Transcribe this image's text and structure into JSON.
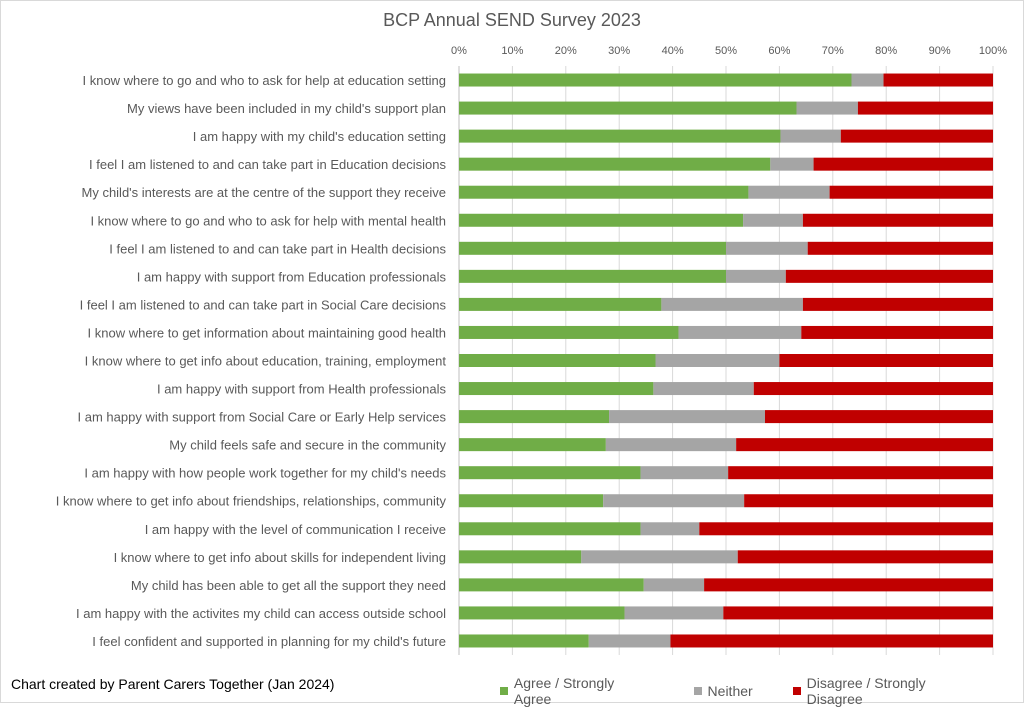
{
  "chart_data": {
    "type": "bar",
    "orientation": "horizontal",
    "stacked": "percent",
    "title": "BCP Annual SEND Survey 2023",
    "credit": "Chart created by Parent Carers Together (Jan 2024)",
    "xlim": [
      0,
      100
    ],
    "x_ticks": [
      "0%",
      "10%",
      "20%",
      "30%",
      "40%",
      "50%",
      "60%",
      "70%",
      "80%",
      "90%",
      "100%"
    ],
    "grid": true,
    "legend_position": "bottom",
    "categories": [
      "I know where to go and who to ask for help at education setting",
      "My views have been included in my child's support plan",
      "I am happy with my child's education setting",
      "I feel I am listened to and can take part in Education decisions",
      "My child's interests are at the centre of the support they receive",
      "I know where to go and who to ask for help with mental health",
      "I feel I am listened to and can take part in Health decisions",
      "I am happy with support from Education professionals",
      "I feel I am listened to and can take part in Social Care decisions",
      "I know where to get information about maintaining good health",
      "I know where to get info about education, training, employment",
      "I am happy with support from Health professionals",
      "I am happy with support from Social Care or Early Help services",
      "My child feels safe and secure in the community",
      "I am happy with how people work together for my child's needs",
      "I know where to get info about friendships, relationships, community",
      "I am happy with the level of communication I receive",
      "I know where to get info about skills for independent living",
      "My child has been able to get all the support they need",
      "I am happy with the activites my child can access outside school",
      "I feel confident and supported in planning for my child's future"
    ],
    "series": [
      {
        "name": "Agree / Strongly Agree",
        "color": "#70ad47",
        "values": [
          73.5,
          63.2,
          60.2,
          58.3,
          54.2,
          53.2,
          50,
          50,
          37.9,
          41.1,
          36.8,
          36.4,
          28.1,
          27.5,
          34,
          27,
          34,
          22.9,
          34.6,
          31,
          24.3
        ]
      },
      {
        "name": "Neither",
        "color": "#a5a5a5",
        "values": [
          6,
          11.5,
          11.3,
          8.1,
          15.2,
          11.2,
          15.3,
          11.2,
          26.5,
          23,
          23.2,
          18.8,
          29.2,
          24.4,
          16.4,
          26.4,
          11,
          29.3,
          11.3,
          18.5,
          15.3
        ]
      },
      {
        "name": "Disagree / Strongly Disagree",
        "color": "#c00000",
        "values": [
          20.5,
          25.3,
          28.5,
          33.6,
          30.6,
          35.6,
          34.7,
          38.8,
          35.6,
          35.9,
          40,
          44.8,
          42.7,
          48.1,
          49.6,
          46.6,
          55,
          47.8,
          54.1,
          50.5,
          60.4
        ]
      }
    ]
  }
}
